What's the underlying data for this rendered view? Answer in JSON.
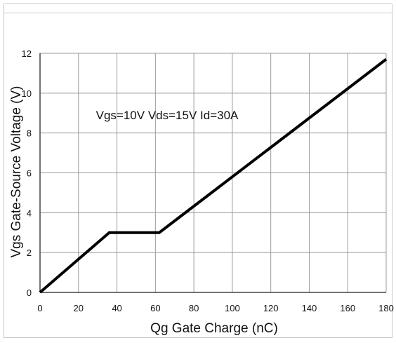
{
  "chart_data": {
    "type": "line",
    "title": "",
    "annotation": "Vgs=10V Vds=15V  Id=30A",
    "xlabel": "Qg Gate Charge (nC)",
    "ylabel": "Vgs Gate-Source Voltage (V)",
    "xlim": [
      0,
      180
    ],
    "ylim": [
      0,
      12
    ],
    "xticks": [
      0,
      20,
      40,
      60,
      80,
      100,
      120,
      140,
      160,
      180
    ],
    "yticks": [
      0,
      2,
      4,
      6,
      8,
      10,
      12
    ],
    "grid": true,
    "legend": "none",
    "series": [
      {
        "x": [
          0,
          36,
          62,
          180
        ],
        "y": [
          0,
          3.0,
          3.0,
          11.7
        ]
      }
    ],
    "colors": {
      "line": "#000000",
      "grid": "#9a9a9a",
      "axis": "#444444"
    }
  }
}
